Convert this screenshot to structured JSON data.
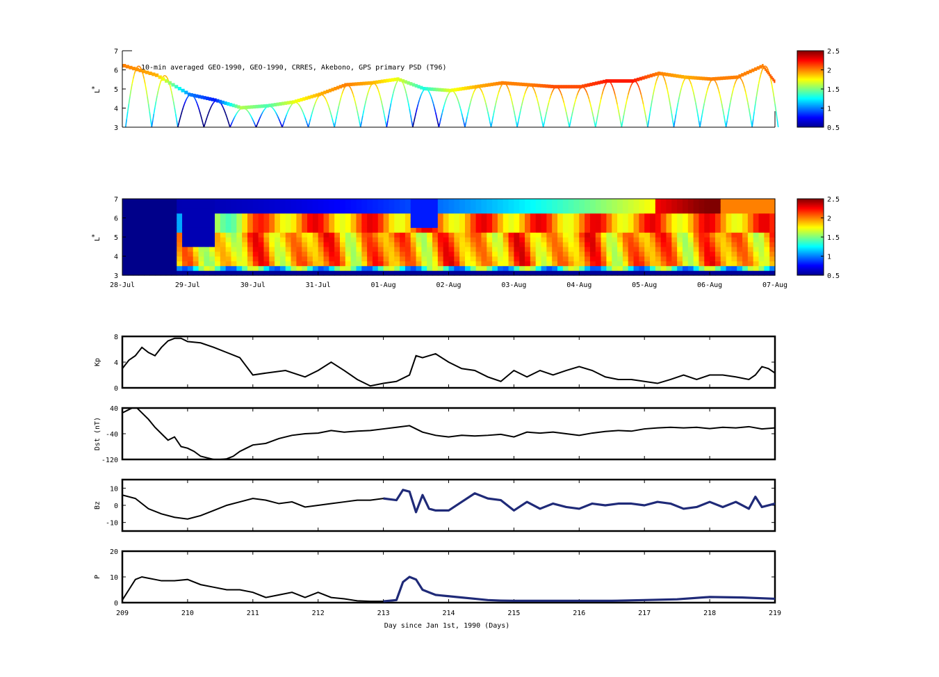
{
  "chart_data": [
    {
      "id": "obs",
      "type": "heatmap",
      "title": "10-min averaged GEO-1990, GEO-1990, CRRES, Akebono, GPS  primary PSD (T96)",
      "ylabel": "L",
      "ylabel_super": "*",
      "ylim": [
        3,
        7
      ],
      "yticks": [
        "3",
        "4",
        "5",
        "6",
        "7"
      ],
      "xlim": [
        209,
        219
      ],
      "colorbar": {
        "ticks": [
          "0.5",
          "1",
          "1.5",
          "2",
          "2.5"
        ],
        "range": [
          0.5,
          2.5
        ],
        "colormap": "jet"
      },
      "traces": {
        "geo_L": [
          [
            209.0,
            6.2
          ],
          [
            209.5,
            5.7
          ],
          [
            210.0,
            4.7
          ],
          [
            210.4,
            4.4
          ],
          [
            210.8,
            4.0
          ],
          [
            211.2,
            4.1
          ],
          [
            211.6,
            4.3
          ],
          [
            212.0,
            4.7
          ],
          [
            212.4,
            5.2
          ],
          [
            212.8,
            5.3
          ],
          [
            213.2,
            5.5
          ],
          [
            213.6,
            5.0
          ],
          [
            214.0,
            4.9
          ],
          [
            214.4,
            5.1
          ],
          [
            214.8,
            5.3
          ],
          [
            215.2,
            5.2
          ],
          [
            215.6,
            5.1
          ],
          [
            216.0,
            5.1
          ],
          [
            216.4,
            5.4
          ],
          [
            216.8,
            5.4
          ],
          [
            217.2,
            5.8
          ],
          [
            217.6,
            5.6
          ],
          [
            218.0,
            5.5
          ],
          [
            218.4,
            5.6
          ],
          [
            218.8,
            6.2
          ],
          [
            219.0,
            5.3
          ]
        ],
        "geo_values": [
          2.0,
          1.9,
          1.0,
          0.8,
          1.6,
          1.4,
          1.7,
          1.9,
          2.0,
          1.9,
          1.7,
          1.3,
          1.7,
          1.9,
          2.0,
          2.0,
          2.1,
          2.1,
          2.2,
          2.2,
          2.0,
          1.9,
          2.0,
          2.0,
          2.0,
          2.1
        ]
      }
    },
    {
      "id": "model",
      "type": "heatmap",
      "ylabel": "L",
      "ylabel_super": "*",
      "ylim": [
        3,
        7
      ],
      "yticks": [
        "3",
        "4",
        "5",
        "6",
        "7"
      ],
      "xlim": [
        209,
        219
      ],
      "xtick_labels": [
        "28-Jul",
        "29-Jul",
        "30-Jul",
        "31-Jul",
        "01-Aug",
        "02-Aug",
        "03-Aug",
        "04-Aug",
        "05-Aug",
        "06-Aug",
        "07-Aug"
      ],
      "colorbar": {
        "ticks": [
          "0.5",
          "1",
          "1.5",
          "2",
          "2.5"
        ],
        "range": [
          0.5,
          2.5
        ],
        "colormap": "jet"
      }
    },
    {
      "id": "kp",
      "type": "line",
      "ylabel": "Kp",
      "ylim": [
        0,
        8
      ],
      "yticks": [
        "0",
        "4",
        "8"
      ],
      "xlim": [
        209,
        219
      ],
      "x": [
        209.0,
        209.1,
        209.2,
        209.3,
        209.4,
        209.5,
        209.6,
        209.7,
        209.8,
        209.9,
        210.0,
        210.2,
        210.4,
        210.6,
        210.8,
        211.0,
        211.2,
        211.5,
        211.8,
        212.0,
        212.2,
        212.4,
        212.6,
        212.8,
        213.0,
        213.2,
        213.4,
        213.5,
        213.6,
        213.8,
        214.0,
        214.2,
        214.4,
        214.6,
        214.8,
        215.0,
        215.2,
        215.4,
        215.6,
        215.8,
        216.0,
        216.2,
        216.4,
        216.6,
        216.8,
        217.0,
        217.2,
        217.4,
        217.6,
        217.8,
        218.0,
        218.2,
        218.4,
        218.6,
        218.7,
        218.8,
        218.9,
        219.0
      ],
      "values": [
        3,
        4.3,
        5,
        6.3,
        5.5,
        5,
        6.3,
        7.3,
        7.7,
        7.7,
        7.2,
        7.0,
        6.3,
        5.5,
        4.7,
        2.0,
        2.3,
        2.7,
        1.7,
        2.7,
        4.0,
        2.7,
        1.3,
        0.3,
        0.7,
        1.0,
        2.0,
        5.0,
        4.7,
        5.3,
        4.0,
        3.0,
        2.7,
        1.7,
        1.0,
        2.7,
        1.7,
        2.7,
        2.0,
        2.7,
        3.3,
        2.7,
        1.7,
        1.3,
        1.3,
        1.0,
        0.7,
        1.3,
        2.0,
        1.3,
        2.0,
        2.0,
        1.7,
        1.3,
        2.0,
        3.3,
        3.0,
        2.3
      ]
    },
    {
      "id": "dst",
      "type": "line",
      "ylabel": "Dst (nT)",
      "ylim": [
        -120,
        40
      ],
      "yticks": [
        "-120",
        "-40",
        "40"
      ],
      "xlim": [
        209,
        219
      ],
      "x": [
        209.0,
        209.1,
        209.2,
        209.3,
        209.4,
        209.5,
        209.6,
        209.7,
        209.8,
        209.9,
        210.0,
        210.1,
        210.2,
        210.3,
        210.4,
        210.5,
        210.6,
        210.7,
        210.8,
        210.9,
        211.0,
        211.2,
        211.4,
        211.6,
        211.8,
        212.0,
        212.2,
        212.4,
        212.6,
        212.8,
        213.0,
        213.2,
        213.4,
        213.5,
        213.6,
        213.8,
        214.0,
        214.2,
        214.4,
        214.6,
        214.8,
        215.0,
        215.2,
        215.4,
        215.6,
        215.8,
        216.0,
        216.2,
        216.4,
        216.6,
        216.8,
        217.0,
        217.2,
        217.4,
        217.6,
        217.8,
        218.0,
        218.2,
        218.4,
        218.6,
        218.8,
        219.0
      ],
      "values": [
        25,
        35,
        45,
        25,
        5,
        -20,
        -40,
        -60,
        -50,
        -80,
        -85,
        -95,
        -110,
        -115,
        -120,
        -120,
        -118,
        -110,
        -95,
        -85,
        -75,
        -70,
        -55,
        -45,
        -40,
        -38,
        -30,
        -35,
        -32,
        -30,
        -25,
        -20,
        -15,
        -25,
        -35,
        -45,
        -50,
        -45,
        -47,
        -45,
        -42,
        -50,
        -35,
        -38,
        -35,
        -40,
        -45,
        -38,
        -33,
        -30,
        -32,
        -25,
        -22,
        -20,
        -22,
        -20,
        -24,
        -20,
        -22,
        -18,
        -25,
        -22
      ]
    },
    {
      "id": "bz",
      "type": "line",
      "ylabel": "Bz",
      "ylim": [
        -15,
        15
      ],
      "yticks": [
        "-10",
        "0",
        "10"
      ],
      "xlim": [
        209,
        219
      ],
      "x": [
        209.0,
        209.2,
        209.4,
        209.6,
        209.8,
        210.0,
        210.2,
        210.4,
        210.6,
        210.8,
        211.0,
        211.2,
        211.4,
        211.6,
        211.8,
        212.0,
        212.2,
        212.4,
        212.6,
        212.8,
        213.0,
        213.2,
        213.3,
        213.4,
        213.5,
        213.6,
        213.7,
        213.8,
        213.9,
        214.0,
        214.2,
        214.4,
        214.6,
        214.8,
        215.0,
        215.2,
        215.4,
        215.6,
        215.8,
        216.0,
        216.2,
        216.4,
        216.6,
        216.8,
        217.0,
        217.2,
        217.4,
        217.6,
        217.8,
        218.0,
        218.2,
        218.4,
        218.6,
        218.7,
        218.8,
        219.0
      ],
      "values": [
        6,
        4,
        -2,
        -5,
        -7,
        -8,
        -6,
        -3,
        0,
        2,
        4,
        3,
        1,
        2,
        -1,
        0,
        1,
        2,
        3,
        3,
        4,
        3,
        9,
        8,
        -4,
        6,
        -2,
        -3,
        -3,
        -3,
        2,
        7,
        4,
        3,
        -3,
        2,
        -2,
        1,
        -1,
        -2,
        1,
        0,
        1,
        1,
        0,
        2,
        1,
        -2,
        -1,
        2,
        -1,
        2,
        -2,
        5,
        -1,
        1
      ]
    },
    {
      "id": "p",
      "type": "line",
      "ylabel": "P",
      "xlabel": "Day since Jan 1st, 1990 (Days)",
      "ylim": [
        0,
        20
      ],
      "yticks": [
        "0",
        "10",
        "20"
      ],
      "xlim": [
        209,
        219
      ],
      "xtick_labels": [
        "209",
        "210",
        "211",
        "212",
        "213",
        "214",
        "215",
        "216",
        "217",
        "218",
        "219"
      ],
      "x": [
        209.0,
        209.1,
        209.2,
        209.3,
        209.4,
        209.5,
        209.6,
        209.8,
        210.0,
        210.2,
        210.4,
        210.6,
        210.8,
        211.0,
        211.2,
        211.4,
        211.6,
        211.8,
        212.0,
        212.2,
        212.4,
        212.6,
        212.8,
        213.0,
        213.2,
        213.3,
        213.4,
        213.5,
        213.6,
        213.7,
        213.8,
        214.0,
        214.2,
        214.4,
        214.6,
        214.8,
        215.0,
        215.5,
        216.0,
        216.5,
        217.0,
        217.5,
        218.0,
        218.5,
        219.0
      ],
      "values": [
        1,
        5,
        9,
        10,
        9.5,
        9,
        8.5,
        8.5,
        9,
        7,
        6,
        5,
        5,
        4,
        2,
        3,
        4,
        2,
        4,
        2,
        1.5,
        0.7,
        0.5,
        0.5,
        1,
        8,
        10,
        9,
        5,
        4,
        3,
        2.5,
        2,
        1.5,
        1,
        0.8,
        0.7,
        0.7,
        0.7,
        0.7,
        1,
        1.3,
        2.2,
        2,
        1.5
      ]
    }
  ],
  "colors": {
    "frame": "#000000",
    "line": "#000000",
    "hires": "#1f2a78"
  }
}
